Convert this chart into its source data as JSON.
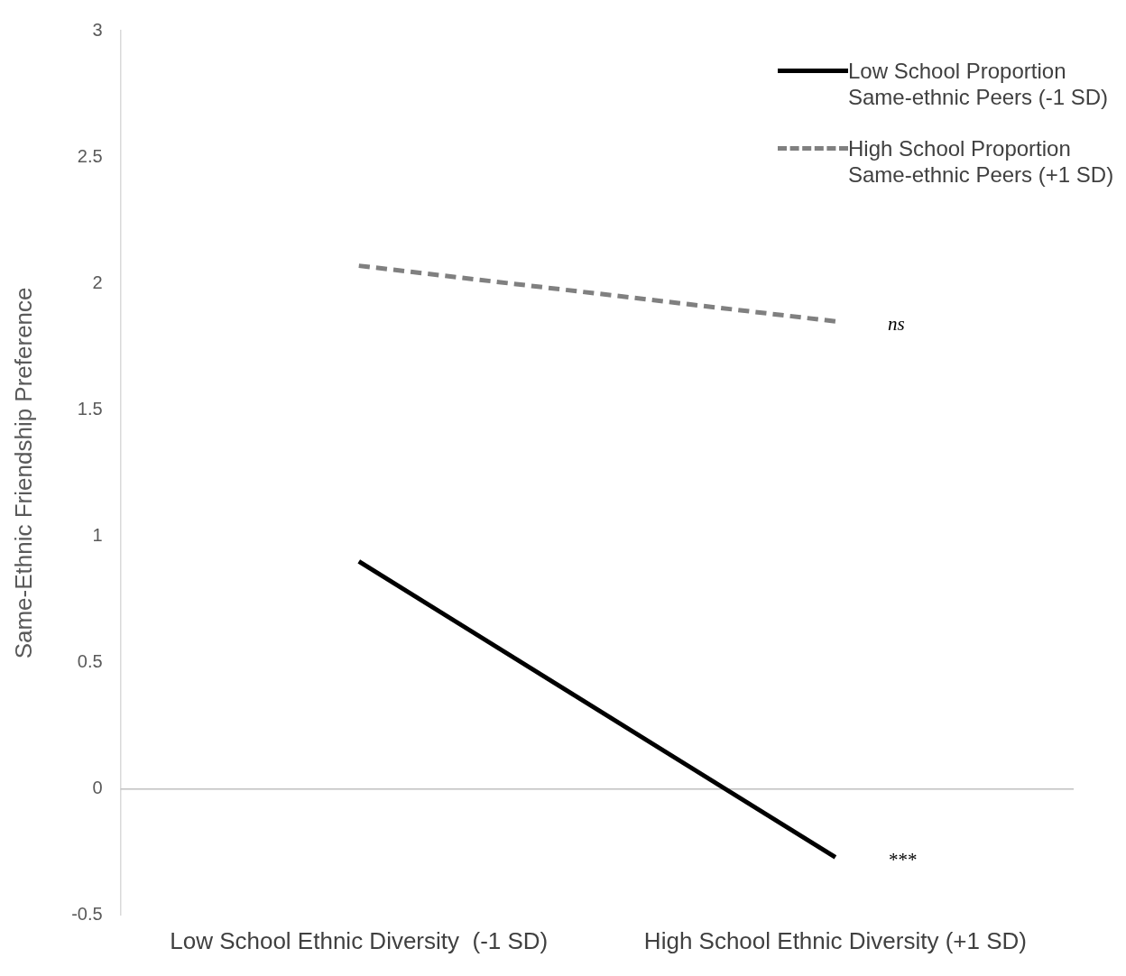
{
  "chart_data": {
    "type": "line",
    "ylabel": "Same-Ethnic Friendship Preference",
    "categories": [
      "Low School Ethnic Diversity  (-1 SD)",
      "High School Ethnic Diversity (+1 SD)"
    ],
    "series": [
      {
        "name": "Low School Proportion Same-ethnic Peers (-1 SD)",
        "color": "#000000",
        "values": [
          0.9,
          -0.27
        ],
        "line_style": "solid"
      },
      {
        "name": "High School Proportion Same-ethnic Peers (+1 SD)",
        "color": "#808080",
        "values": [
          2.07,
          1.85
        ],
        "line_style": "dashed"
      }
    ],
    "ylim": [
      -0.5,
      3
    ],
    "yticks": [
      -0.5,
      0,
      0.5,
      1,
      1.5,
      2,
      2.5,
      3
    ],
    "ref_lines": [
      {
        "axis": "y",
        "value": 0,
        "color": "#bfbfbf"
      }
    ],
    "annotations": [
      {
        "text": "ns",
        "x": "High School Ethnic Diversity (+1 SD)",
        "y": 1.85
      },
      {
        "text": "***",
        "x": "High School Ethnic Diversity (+1 SD)",
        "y": -0.27
      }
    ],
    "legend": "top right",
    "marker": "none"
  }
}
